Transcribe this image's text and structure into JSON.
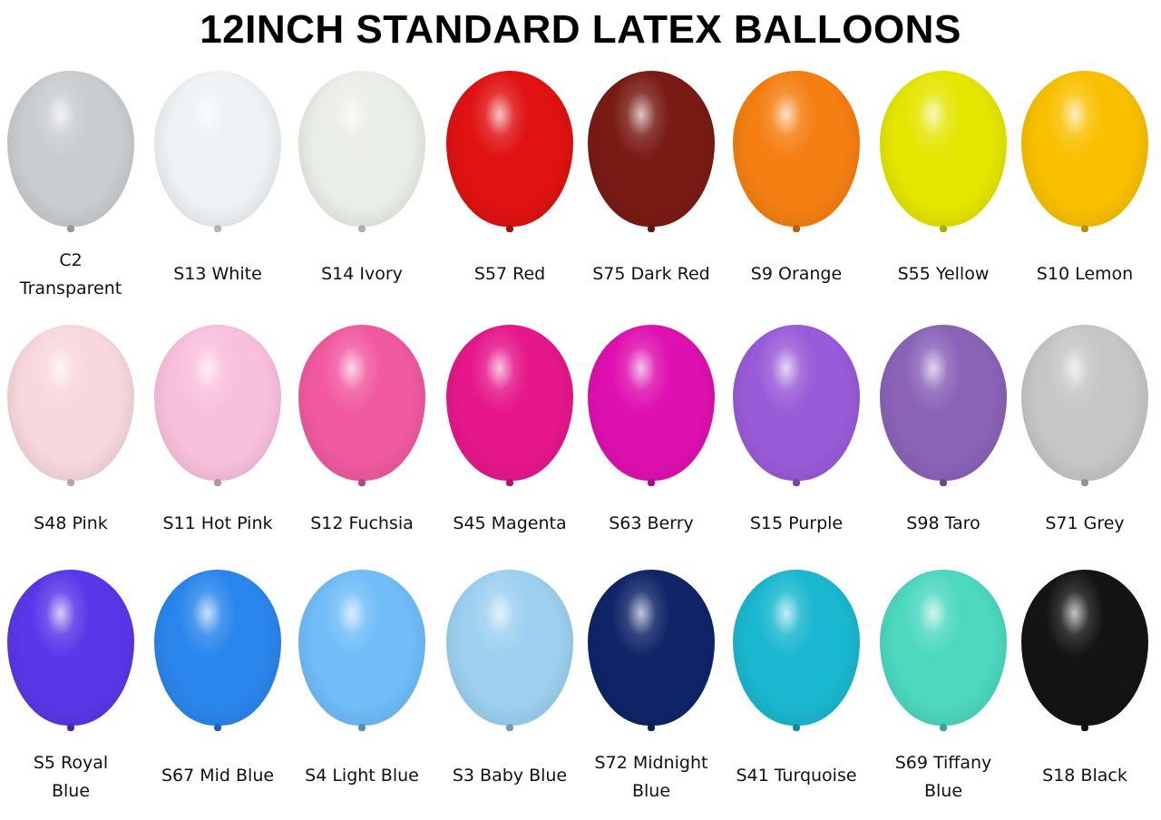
{
  "title": "12INCH STANDARD LATEX BALLOONS",
  "rows": [
    [
      {
        "label": "C2 Transparent",
        "lines": [
          "C2",
          "Transparent"
        ],
        "color": "#c9cdcf"
      },
      {
        "label": "S13 White",
        "lines": [
          "S13 White"
        ],
        "color": "#eef2f4"
      },
      {
        "label": "S14 Ivory",
        "lines": [
          "S14 Ivory"
        ],
        "color": "#e9eee6"
      },
      {
        "label": "S57 Red",
        "lines": [
          "S57 Red"
        ],
        "color": "#e01212"
      },
      {
        "label": "S75 Dark Red",
        "lines": [
          "S75 Dark Red"
        ],
        "color": "#7a1b15"
      },
      {
        "label": "S9 Orange",
        "lines": [
          "S9 Orange"
        ],
        "color": "#f57f12"
      },
      {
        "label": "S55 Yellow",
        "lines": [
          "S55 Yellow"
        ],
        "color": "#e4e600"
      },
      {
        "label": "S10 Lemon",
        "lines": [
          "S10 Lemon"
        ],
        "color": "#f9c000"
      }
    ],
    [
      {
        "label": "S48 Pink",
        "lines": [
          "S48 Pink"
        ],
        "color": "#f8d8dc"
      },
      {
        "label": "S11 Hot Pink",
        "lines": [
          "S11 Hot Pink"
        ],
        "color": "#f9c0dc"
      },
      {
        "label": "S12 Fuchsia",
        "lines": [
          "S12 Fuchsia"
        ],
        "color": "#f15aa0"
      },
      {
        "label": "S45 Magenta",
        "lines": [
          "S45 Magenta"
        ],
        "color": "#e6178a"
      },
      {
        "label": "S63 Berry",
        "lines": [
          "S63 Berry"
        ],
        "color": "#df10b0"
      },
      {
        "label": "S15 Purple",
        "lines": [
          "S15 Purple"
        ],
        "color": "#9a5bd8"
      },
      {
        "label": "S98 Taro",
        "lines": [
          "S98 Taro"
        ],
        "color": "#8a63b8"
      },
      {
        "label": "S71 Grey",
        "lines": [
          "S71 Grey"
        ],
        "color": "#c4c7c4"
      }
    ],
    [
      {
        "label": "S5 Royal Blue",
        "lines": [
          "S5 Royal",
          "Blue"
        ],
        "color": "#5a37e8"
      },
      {
        "label": "S67 Mid Blue",
        "lines": [
          "S67 Mid Blue"
        ],
        "color": "#2a86ec"
      },
      {
        "label": "S4 Light Blue",
        "lines": [
          "S4 Light Blue"
        ],
        "color": "#70bdf8"
      },
      {
        "label": "S3 Baby Blue",
        "lines": [
          "S3 Baby Blue"
        ],
        "color": "#9dd0f0"
      },
      {
        "label": "S72 Midnight Blue",
        "lines": [
          "S72 Midnight",
          "Blue"
        ],
        "color": "#0f2568"
      },
      {
        "label": "S41 Turquoise",
        "lines": [
          "S41 Turquoise"
        ],
        "color": "#1ab8d0"
      },
      {
        "label": "S69 Tiffany Blue",
        "lines": [
          "S69 Tiffany",
          "Blue"
        ],
        "color": "#4dd8c0"
      },
      {
        "label": "S18 Black",
        "lines": [
          "S18 Black"
        ],
        "color": "#141414"
      }
    ]
  ]
}
